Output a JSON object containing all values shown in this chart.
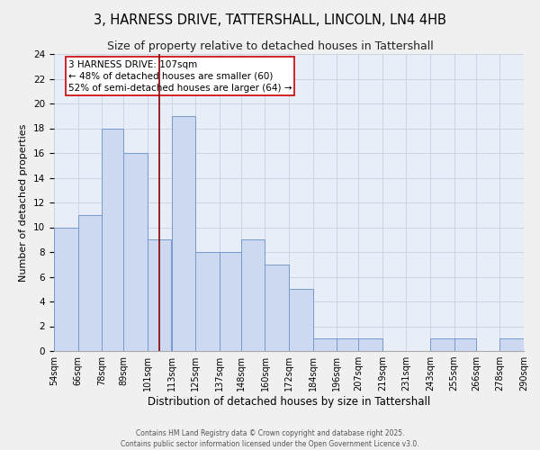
{
  "title": "3, HARNESS DRIVE, TATTERSHALL, LINCOLN, LN4 4HB",
  "subtitle": "Size of property relative to detached houses in Tattershall",
  "xlabel": "Distribution of detached houses by size in Tattershall",
  "ylabel": "Number of detached properties",
  "bin_edges": [
    54,
    66,
    78,
    89,
    101,
    113,
    125,
    137,
    148,
    160,
    172,
    184,
    196,
    207,
    219,
    231,
    243,
    255,
    266,
    278,
    290
  ],
  "bin_labels": [
    "54sqm",
    "66sqm",
    "78sqm",
    "89sqm",
    "101sqm",
    "113sqm",
    "125sqm",
    "137sqm",
    "148sqm",
    "160sqm",
    "172sqm",
    "184sqm",
    "196sqm",
    "207sqm",
    "219sqm",
    "231sqm",
    "243sqm",
    "255sqm",
    "266sqm",
    "278sqm",
    "290sqm"
  ],
  "counts": [
    10,
    11,
    18,
    16,
    9,
    19,
    8,
    8,
    9,
    7,
    5,
    1,
    1,
    1,
    0,
    0,
    1,
    1,
    0,
    1
  ],
  "bar_facecolor": "#ccd9f0",
  "bar_edgecolor": "#7799cc",
  "grid_color": "#c8cfe0",
  "bg_color": "#e8eef8",
  "vline_x": 107,
  "vline_color": "#880000",
  "annotation_text": "3 HARNESS DRIVE: 107sqm\n← 48% of detached houses are smaller (60)\n52% of semi-detached houses are larger (64) →",
  "annotation_box_edgecolor": "#cc0000",
  "annotation_box_facecolor": "#ffffff",
  "ylim": [
    0,
    24
  ],
  "yticks": [
    0,
    2,
    4,
    6,
    8,
    10,
    12,
    14,
    16,
    18,
    20,
    22,
    24
  ],
  "footer": "Contains HM Land Registry data © Crown copyright and database right 2025.\nContains public sector information licensed under the Open Government Licence v3.0.",
  "title_fontsize": 10.5,
  "subtitle_fontsize": 9,
  "xlabel_fontsize": 8.5,
  "ylabel_fontsize": 8,
  "annotation_fontsize": 7.5,
  "tick_fontsize": 7,
  "ytick_fontsize": 7.5,
  "footer_fontsize": 5.5,
  "fig_bg_color": "#f0f0f0"
}
